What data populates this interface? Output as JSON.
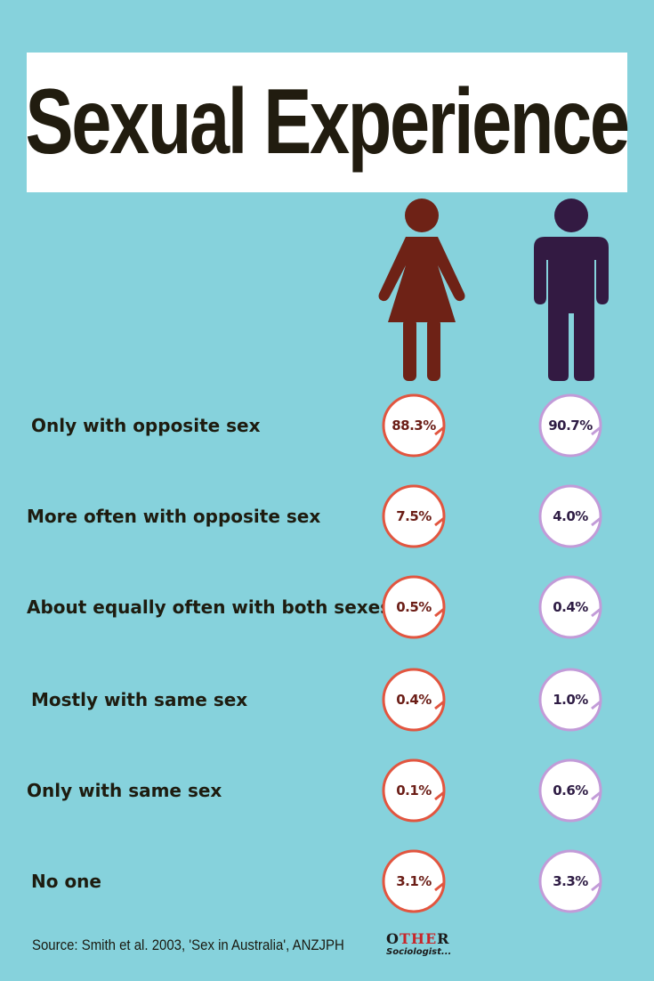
{
  "title": "Sexual Experience",
  "colors": {
    "background": "#86d2dc",
    "female_figure": "#6e2216",
    "male_figure": "#331a42",
    "female_ring": "#e2553f",
    "male_ring": "#c29bd8"
  },
  "icons": {
    "female": "woman-figure-icon",
    "male": "man-figure-icon"
  },
  "rows": [
    {
      "label": "Only with opposite sex",
      "female": "88.3%",
      "male": "90.7%"
    },
    {
      "label": "More often with opposite sex",
      "female": "7.5%",
      "male": "4.0%"
    },
    {
      "label": "About equally often with both sexes",
      "female": "0.5%",
      "male": "0.4%"
    },
    {
      "label": "Mostly with same sex",
      "female": "0.4%",
      "male": "1.0%"
    },
    {
      "label": "Only with same sex",
      "female": "0.1%",
      "male": "0.6%"
    },
    {
      "label": "No one",
      "female": "3.1%",
      "male": "3.3%"
    }
  ],
  "source": "Source: Smith et al. 2003, 'Sex in Australia', ANZJPH",
  "logo": {
    "top_prefix": "O",
    "top_accent": "THE",
    "top_suffix": "R",
    "bottom": "Sociologist..."
  }
}
